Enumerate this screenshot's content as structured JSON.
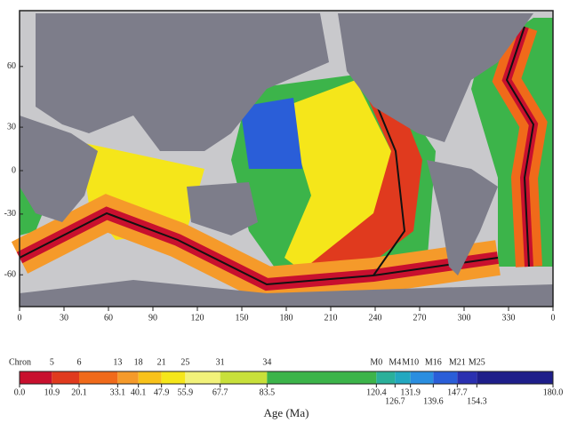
{
  "map": {
    "lon_ticks": [
      0,
      30,
      60,
      90,
      120,
      150,
      180,
      210,
      240,
      270,
      300,
      330,
      0
    ],
    "lat_ticks": [
      60,
      30,
      0,
      -30,
      -60
    ]
  },
  "colorbar": {
    "chron_label": "Chron",
    "chrons": [
      "5",
      "6",
      "13",
      "18",
      "21",
      "25",
      "31",
      "34",
      "M0",
      "M4",
      "M10",
      "M16",
      "M21",
      "M25"
    ],
    "ages": [
      {
        "value": 0,
        "label": "0.0"
      },
      10.9,
      20.1,
      33.1,
      40.1,
      47.9,
      55.9,
      67.7,
      83.5,
      120.4,
      126.7,
      131.9,
      139.6,
      147.7,
      154.3,
      {
        "value": 180,
        "label": "180.0"
      }
    ],
    "colors": [
      "#c8102e",
      "#e03a1e",
      "#f06a1a",
      "#f59a2a",
      "#f8c21a",
      "#f5e61a",
      "#f2f27a",
      "#c8e03a",
      "#3cb44a",
      "#2ab09a",
      "#22a8c0",
      "#2a8ee0",
      "#2a5ed8",
      "#2a30b0",
      "#1e1e8a"
    ],
    "axis_label": "Age (Ma)"
  }
}
